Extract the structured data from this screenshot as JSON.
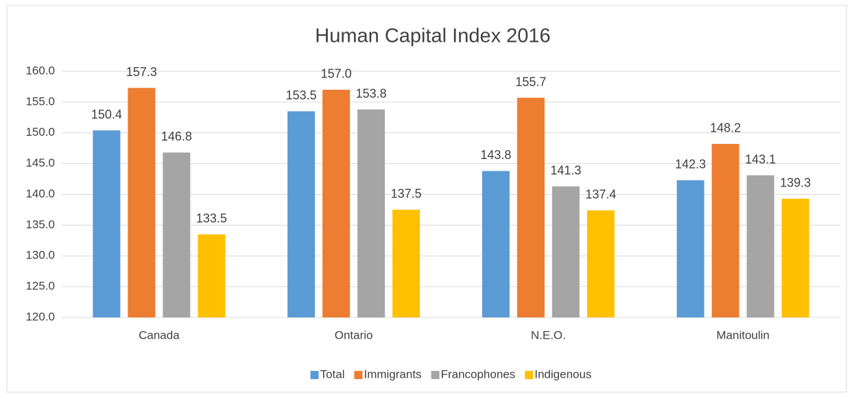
{
  "chart_data": {
    "type": "bar",
    "title": "Human Capital Index 2016",
    "categories": [
      "Canada",
      "Ontario",
      "N.E.O.",
      "Manitoulin"
    ],
    "series": [
      {
        "name": "Total",
        "color": "#5b9bd5",
        "values": [
          150.4,
          153.5,
          143.8,
          142.3
        ],
        "value_labels": [
          "150.4",
          "153.5",
          "143.8",
          "142.3"
        ]
      },
      {
        "name": "Immigrants",
        "color": "#ed7d31",
        "values": [
          157.3,
          157.0,
          155.7,
          148.2
        ],
        "value_labels": [
          "157.3",
          "157.0",
          "155.7",
          "148.2"
        ]
      },
      {
        "name": "Francophones",
        "color": "#a5a5a5",
        "values": [
          146.8,
          153.8,
          141.3,
          143.1
        ],
        "value_labels": [
          "146.8",
          "153.8",
          "141.3",
          "143.1"
        ]
      },
      {
        "name": "Indigenous",
        "color": "#ffc000",
        "values": [
          133.5,
          137.5,
          137.4,
          139.3
        ],
        "value_labels": [
          "133.5",
          "137.5",
          "137.4",
          "139.3"
        ]
      }
    ],
    "ylim": [
      120,
      160
    ],
    "yticks": [
      {
        "value": 120,
        "label": "120.0"
      },
      {
        "value": 125,
        "label": "125.0"
      },
      {
        "value": 130,
        "label": "130.0"
      },
      {
        "value": 135,
        "label": "135.0"
      },
      {
        "value": 140,
        "label": "140.0"
      },
      {
        "value": 145,
        "label": "145.0"
      },
      {
        "value": 150,
        "label": "150.0"
      },
      {
        "value": 155,
        "label": "155.0"
      },
      {
        "value": 160,
        "label": "160.0"
      }
    ],
    "grid": true,
    "legend": "bottom"
  }
}
